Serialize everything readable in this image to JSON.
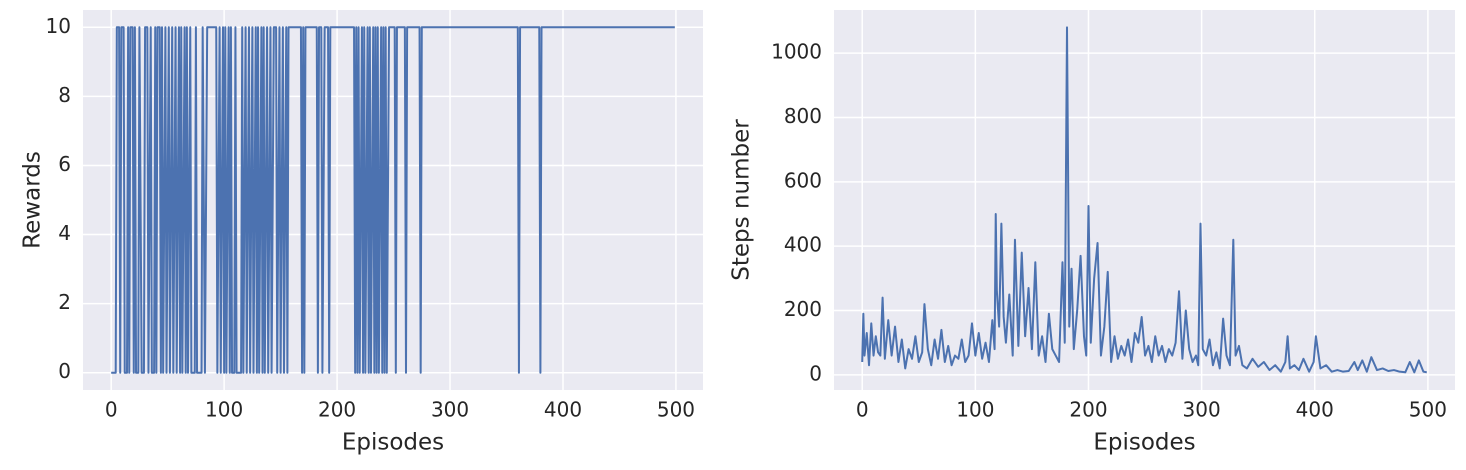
{
  "chart_data": [
    {
      "type": "line",
      "xlabel": "Episodes",
      "ylabel": "Rewards",
      "color": "#4c72b0",
      "grid": true,
      "xlim": [
        -24.95,
        523.95
      ],
      "ylim": [
        -0.5,
        10.5
      ],
      "xticks": [
        0,
        100,
        200,
        300,
        400,
        500
      ],
      "yticks": [
        0,
        2,
        4,
        6,
        8,
        10
      ],
      "x": [
        0,
        4,
        5,
        7,
        8,
        9,
        11,
        12,
        14,
        15,
        16,
        17,
        19,
        20,
        21,
        22,
        24,
        25,
        27,
        29,
        30,
        32,
        33,
        35,
        36,
        38,
        39,
        40,
        41,
        43,
        44,
        45,
        46,
        48,
        49,
        51,
        52,
        54,
        55,
        57,
        58,
        60,
        61,
        62,
        63,
        65,
        66,
        67,
        68,
        70,
        71,
        74,
        75,
        76,
        80,
        81,
        83,
        85,
        93,
        94,
        96,
        97,
        99,
        100,
        101,
        102,
        104,
        105,
        106,
        107,
        109,
        110,
        111,
        115,
        116,
        117,
        119,
        120,
        122,
        123,
        125,
        126,
        128,
        129,
        130,
        131,
        133,
        134,
        135,
        136,
        138,
        139,
        141,
        142,
        144,
        146,
        147,
        149,
        150,
        152,
        153,
        155,
        156,
        157,
        168,
        169,
        170,
        171,
        172,
        182,
        183,
        184,
        186,
        187,
        189,
        192,
        193,
        194,
        215,
        216,
        217,
        218,
        219,
        220,
        222,
        223,
        224,
        225,
        227,
        228,
        229,
        230,
        232,
        233,
        234,
        235,
        236,
        237,
        239,
        240,
        241,
        242,
        243,
        244,
        246,
        251,
        252,
        253,
        260,
        261,
        262,
        273,
        274,
        275,
        360,
        361,
        362,
        379,
        380,
        381,
        499
      ],
      "values": [
        0,
        0,
        10,
        10,
        0,
        10,
        10,
        0,
        0,
        10,
        0,
        10,
        10,
        0,
        10,
        0,
        0,
        10,
        0,
        0,
        10,
        10,
        0,
        10,
        0,
        0,
        10,
        0,
        10,
        10,
        0,
        10,
        0,
        10,
        0,
        10,
        0,
        10,
        0,
        10,
        0,
        10,
        0,
        10,
        0,
        10,
        0,
        10,
        0,
        10,
        0,
        0,
        10,
        0,
        0,
        10,
        0,
        10,
        10,
        0,
        10,
        0,
        10,
        0,
        10,
        0,
        10,
        0,
        10,
        0,
        0,
        10,
        0,
        0,
        10,
        0,
        10,
        0,
        10,
        0,
        10,
        0,
        10,
        0,
        10,
        0,
        10,
        0,
        10,
        0,
        10,
        0,
        10,
        0,
        10,
        10,
        0,
        10,
        0,
        10,
        0,
        10,
        0,
        10,
        10,
        0,
        10,
        0,
        10,
        10,
        0,
        10,
        10,
        0,
        10,
        10,
        0,
        10,
        10,
        0,
        10,
        0,
        10,
        0,
        10,
        0,
        10,
        0,
        10,
        0,
        10,
        0,
        10,
        0,
        10,
        0,
        10,
        0,
        10,
        0,
        10,
        0,
        10,
        0,
        10,
        10,
        0,
        10,
        10,
        0,
        10,
        10,
        0,
        10,
        10,
        0,
        10,
        10,
        0,
        10,
        10
      ]
    },
    {
      "type": "line",
      "xlabel": "Episodes",
      "ylabel": "Steps number",
      "color": "#4c72b0",
      "grid": true,
      "xlim": [
        -24.95,
        523.95
      ],
      "ylim": [
        -47,
        1134
      ],
      "xticks": [
        0,
        100,
        200,
        300,
        400,
        500
      ],
      "yticks": [
        0,
        200,
        400,
        600,
        800,
        1000
      ],
      "x": [
        0,
        1,
        2,
        4,
        6,
        8,
        10,
        12,
        14,
        16,
        18,
        20,
        23,
        26,
        29,
        32,
        35,
        38,
        41,
        44,
        47,
        50,
        53,
        55,
        58,
        61,
        64,
        67,
        70,
        73,
        76,
        79,
        82,
        85,
        88,
        91,
        94,
        97,
        100,
        103,
        106,
        109,
        112,
        115,
        117,
        118,
        119,
        121,
        123,
        125,
        127,
        130,
        133,
        135,
        138,
        141,
        144,
        147,
        150,
        153,
        156,
        159,
        162,
        165,
        168,
        171,
        174,
        177,
        179,
        181,
        183,
        185,
        187,
        190,
        193,
        196,
        198,
        200,
        202,
        205,
        208,
        211,
        214,
        217,
        220,
        223,
        226,
        229,
        232,
        235,
        238,
        241,
        244,
        247,
        250,
        253,
        256,
        259,
        262,
        265,
        268,
        271,
        274,
        277,
        280,
        283,
        286,
        289,
        292,
        295,
        297,
        299,
        301,
        304,
        307,
        310,
        313,
        316,
        319,
        322,
        325,
        328,
        330,
        333,
        336,
        340,
        345,
        350,
        355,
        360,
        365,
        370,
        374,
        376,
        378,
        382,
        386,
        390,
        395,
        399,
        401,
        405,
        410,
        415,
        420,
        425,
        430,
        435,
        438,
        442,
        446,
        450,
        455,
        460,
        465,
        470,
        475,
        480,
        484,
        488,
        492,
        496,
        499
      ],
      "values": [
        40,
        190,
        60,
        130,
        30,
        160,
        60,
        120,
        70,
        60,
        240,
        50,
        170,
        60,
        150,
        40,
        110,
        20,
        80,
        50,
        120,
        40,
        70,
        220,
        80,
        30,
        110,
        50,
        140,
        40,
        90,
        30,
        60,
        50,
        110,
        40,
        60,
        160,
        60,
        130,
        50,
        100,
        40,
        170,
        80,
        500,
        260,
        150,
        470,
        180,
        100,
        250,
        60,
        420,
        90,
        380,
        120,
        270,
        80,
        350,
        60,
        120,
        40,
        190,
        80,
        60,
        40,
        350,
        100,
        1080,
        150,
        330,
        80,
        200,
        370,
        120,
        60,
        525,
        100,
        300,
        410,
        60,
        150,
        320,
        40,
        120,
        50,
        90,
        60,
        110,
        40,
        130,
        100,
        180,
        60,
        90,
        40,
        120,
        60,
        90,
        40,
        80,
        60,
        100,
        260,
        50,
        200,
        80,
        40,
        60,
        30,
        470,
        80,
        60,
        110,
        30,
        70,
        20,
        175,
        60,
        30,
        420,
        60,
        90,
        30,
        20,
        50,
        25,
        40,
        15,
        30,
        10,
        40,
        120,
        20,
        30,
        15,
        50,
        10,
        40,
        120,
        20,
        30,
        10,
        15,
        10,
        12,
        40,
        15,
        45,
        10,
        55,
        15,
        20,
        12,
        15,
        10,
        8,
        40,
        8,
        45,
        10,
        8
      ]
    }
  ]
}
